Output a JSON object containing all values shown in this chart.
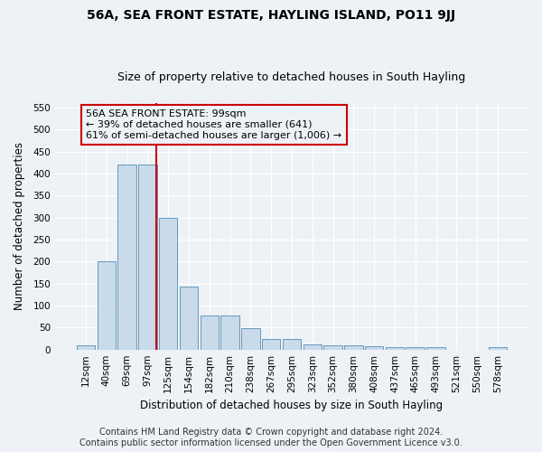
{
  "title": "56A, SEA FRONT ESTATE, HAYLING ISLAND, PO11 9JJ",
  "subtitle": "Size of property relative to detached houses in South Hayling",
  "xlabel": "Distribution of detached houses by size in South Hayling",
  "ylabel": "Number of detached properties",
  "categories": [
    "12sqm",
    "40sqm",
    "69sqm",
    "97sqm",
    "125sqm",
    "154sqm",
    "182sqm",
    "210sqm",
    "238sqm",
    "267sqm",
    "295sqm",
    "323sqm",
    "352sqm",
    "380sqm",
    "408sqm",
    "437sqm",
    "465sqm",
    "493sqm",
    "521sqm",
    "550sqm",
    "578sqm"
  ],
  "values": [
    10,
    200,
    420,
    420,
    300,
    143,
    77,
    77,
    48,
    24,
    24,
    12,
    10,
    10,
    8,
    6,
    5,
    5,
    0,
    0,
    5
  ],
  "bar_color": "#c9daea",
  "bar_edge_color": "#6699bb",
  "property_line_index": 3,
  "property_line_color": "#cc0000",
  "annotation_text": "56A SEA FRONT ESTATE: 99sqm\n← 39% of detached houses are smaller (641)\n61% of semi-detached houses are larger (1,006) →",
  "annotation_box_edgecolor": "#cc0000",
  "ylim": [
    0,
    560
  ],
  "yticks": [
    0,
    50,
    100,
    150,
    200,
    250,
    300,
    350,
    400,
    450,
    500,
    550
  ],
  "footer_line1": "Contains HM Land Registry data © Crown copyright and database right 2024.",
  "footer_line2": "Contains public sector information licensed under the Open Government Licence v3.0.",
  "background_color": "#eef2f7",
  "grid_color": "#ffffff",
  "title_fontsize": 10,
  "subtitle_fontsize": 9,
  "axis_label_fontsize": 8.5,
  "tick_fontsize": 7.5,
  "annotation_fontsize": 8,
  "footer_fontsize": 7
}
